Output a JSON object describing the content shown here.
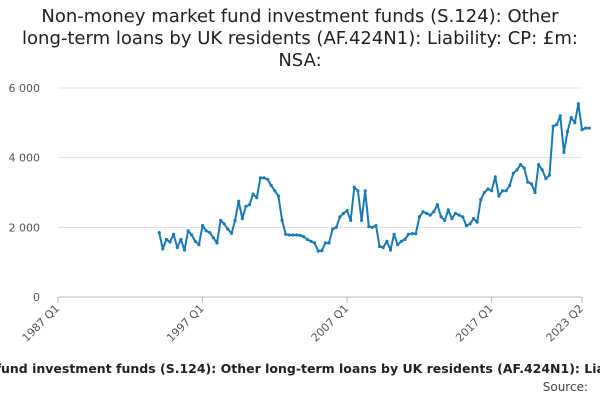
{
  "chart_data": {
    "type": "line",
    "title": "Non-money market fund investment funds (S.124): Other long-term loans by UK residents (AF.424N1): Liability: CP: £m: NSA:",
    "y_ticks": [
      "0",
      "2 000",
      "4 000",
      "6 000"
    ],
    "x_ticks": [
      "1987 Q1",
      "1997 Q1",
      "2007 Q1",
      "2017 Q1",
      "2023 Q2"
    ],
    "ylim": [
      0,
      6000
    ],
    "grid": "horizontal",
    "legend_position": "bottom",
    "series": [
      {
        "name": "Non-money market fund investment funds (S.124): Other long-term loans by UK residents (AF.424N1): Liability: CP: £m: NSA:",
        "color": "#1a7ab6",
        "start": "1994 Q1",
        "values": [
          1850,
          1380,
          1650,
          1580,
          1800,
          1420,
          1650,
          1350,
          1900,
          1780,
          1600,
          1500,
          2050,
          1900,
          1850,
          1700,
          1550,
          2200,
          2100,
          1950,
          1830,
          2200,
          2750,
          2250,
          2600,
          2650,
          2950,
          2850,
          3420,
          3420,
          3380,
          3200,
          3050,
          2900,
          2200,
          1800,
          1780,
          1780,
          1780,
          1770,
          1730,
          1650,
          1600,
          1550,
          1320,
          1330,
          1550,
          1550,
          1950,
          2000,
          2300,
          2400,
          2480,
          2200,
          3150,
          3050,
          2200,
          3050,
          2020,
          2000,
          2050,
          1450,
          1420,
          1600,
          1350,
          1800,
          1500,
          1600,
          1650,
          1800,
          1820,
          1820,
          2300,
          2450,
          2400,
          2350,
          2450,
          2650,
          2300,
          2200,
          2500,
          2250,
          2400,
          2350,
          2300,
          2050,
          2100,
          2250,
          2150,
          2800,
          3000,
          3100,
          3050,
          3450,
          2900,
          3050,
          3050,
          3200,
          3550,
          3650,
          3800,
          3700,
          3300,
          3250,
          3000,
          3800,
          3650,
          3400,
          3500,
          4900,
          4950,
          5200,
          4150,
          4750,
          5150,
          5000,
          5550,
          4800,
          4850,
          4850
        ]
      }
    ],
    "source_label": "Source:"
  }
}
